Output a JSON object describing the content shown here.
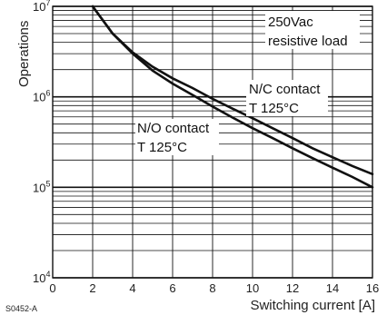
{
  "chart_data": {
    "type": "line",
    "xlabel": "Switching current [A]",
    "ylabel": "Operations",
    "xlim": [
      0,
      16
    ],
    "ylim": [
      10000,
      10000000
    ],
    "yscale": "log",
    "grid": true,
    "x_ticks": [
      "0",
      "2",
      "4",
      "6",
      "8",
      "10",
      "12",
      "14",
      "16"
    ],
    "y_ticks": [
      {
        "value": 10000,
        "base": "10",
        "exp": "4"
      },
      {
        "value": 100000,
        "base": "10",
        "exp": "5"
      },
      {
        "value": 1000000,
        "base": "10",
        "exp": "6"
      },
      {
        "value": 10000000,
        "base": "10",
        "exp": "7"
      }
    ],
    "series": [
      {
        "id": "nc",
        "label_lines": [
          "N/C contact",
          "T 125°C"
        ],
        "x": [
          2,
          3,
          4,
          5,
          6,
          7,
          8,
          9,
          10,
          11,
          12,
          13,
          14,
          15,
          16
        ],
        "y": [
          10000000,
          5000000,
          3100000,
          2150000,
          1600000,
          1250000,
          950000,
          740000,
          580000,
          450000,
          350000,
          270000,
          215000,
          172000,
          140000
        ]
      },
      {
        "id": "no",
        "label_lines": [
          "N/O contact",
          "T 125°C"
        ],
        "x": [
          2,
          3,
          4,
          5,
          6,
          7,
          8,
          9,
          10,
          11,
          12,
          13,
          14,
          15,
          16
        ],
        "y": [
          10000000,
          5000000,
          3000000,
          1950000,
          1400000,
          1050000,
          780000,
          590000,
          450000,
          350000,
          270000,
          210000,
          165000,
          130000,
          100000
        ]
      }
    ],
    "annotation_lines": [
      "250Vac",
      "resistive load"
    ],
    "figure_code": "S0452-A"
  }
}
